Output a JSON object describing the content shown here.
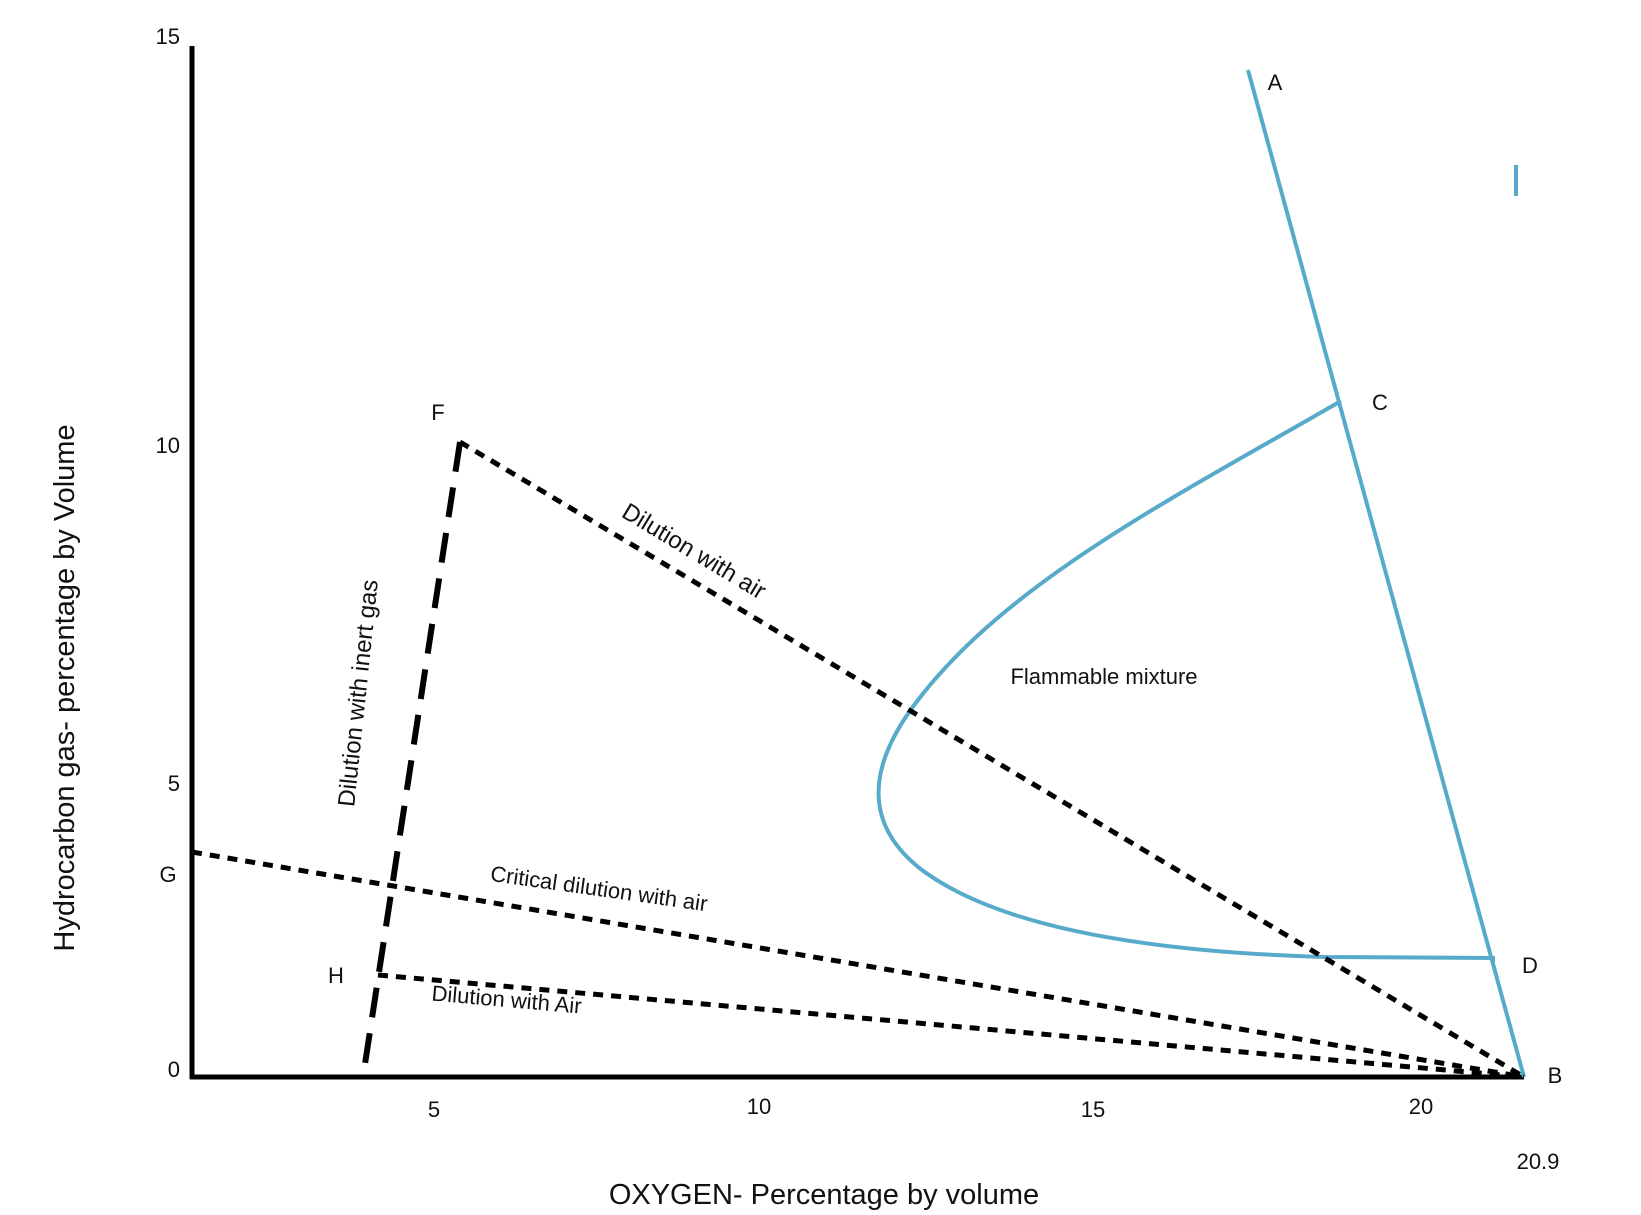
{
  "chart_data": {
    "type": "diagram",
    "xlabel": "OXYGEN- Percentage by volume",
    "ylabel": "Hydrocarbon gas- percentage by Volume",
    "xticks": [
      "5",
      "10",
      "15",
      "20"
    ],
    "xtick_extra": "20.9",
    "yticks": [
      "15",
      "10",
      "5",
      "0"
    ],
    "xlim": [
      1.7,
      21.8
    ],
    "ylim": [
      0,
      15
    ],
    "point_labels": [
      "A",
      "B",
      "C",
      "D",
      "F",
      "G",
      "H"
    ],
    "annotations": {
      "flammable": "Flammable mixture",
      "dilution_air_upper": "Dilution with air",
      "dilution_inert": "Dilution with inert gas",
      "critical_dilution": "Critical dilution with air",
      "dilution_air_lower": "Dilution with Air"
    },
    "colors": {
      "boundary": "#58aacb",
      "lines": "#000000"
    }
  }
}
